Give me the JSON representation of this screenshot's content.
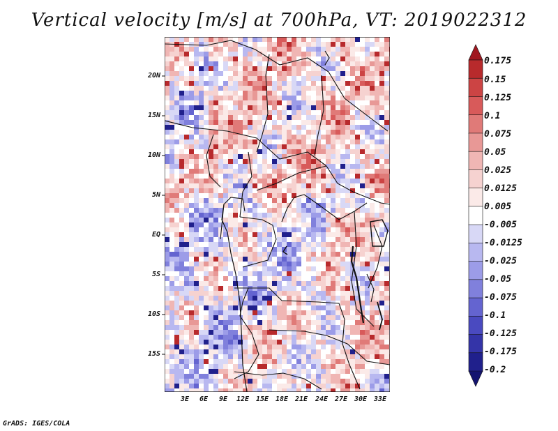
{
  "title": "Vertical velocity [m/s] at 700hPa, VT: 2019022312",
  "credit": "GrADS: IGES/COLA",
  "map": {
    "variable": "Vertical velocity",
    "units": "m/s",
    "level": "700hPa",
    "valid_time": "2019022312",
    "lat_ticks": [
      "20N",
      "15N",
      "10N",
      "5N",
      "EQ",
      "5S",
      "10S",
      "15S"
    ],
    "lon_ticks": [
      "3E",
      "6E",
      "9E",
      "12E",
      "15E",
      "18E",
      "21E",
      "24E",
      "27E",
      "30E",
      "33E"
    ]
  },
  "colorbar": {
    "labels": [
      "0.175",
      "0.15",
      "0.125",
      "0.1",
      "0.075",
      "0.05",
      "0.025",
      "0.0125",
      "0.005",
      "-0.005",
      "-0.0125",
      "-0.025",
      "-0.05",
      "-0.075",
      "-0.1",
      "-0.125",
      "-0.175",
      "-0.2"
    ],
    "colors": [
      "#a01820",
      "#b82a2c",
      "#cc4444",
      "#d85a5a",
      "#e07a78",
      "#e89896",
      "#f0b6b4",
      "#f6d2d0",
      "#fbeae8",
      "#ffffff",
      "#d8d8f6",
      "#b8b8f0",
      "#9c9ce8",
      "#8080dc",
      "#6464d0",
      "#4a4ac0",
      "#3434a8",
      "#20208c",
      "#141470"
    ]
  }
}
